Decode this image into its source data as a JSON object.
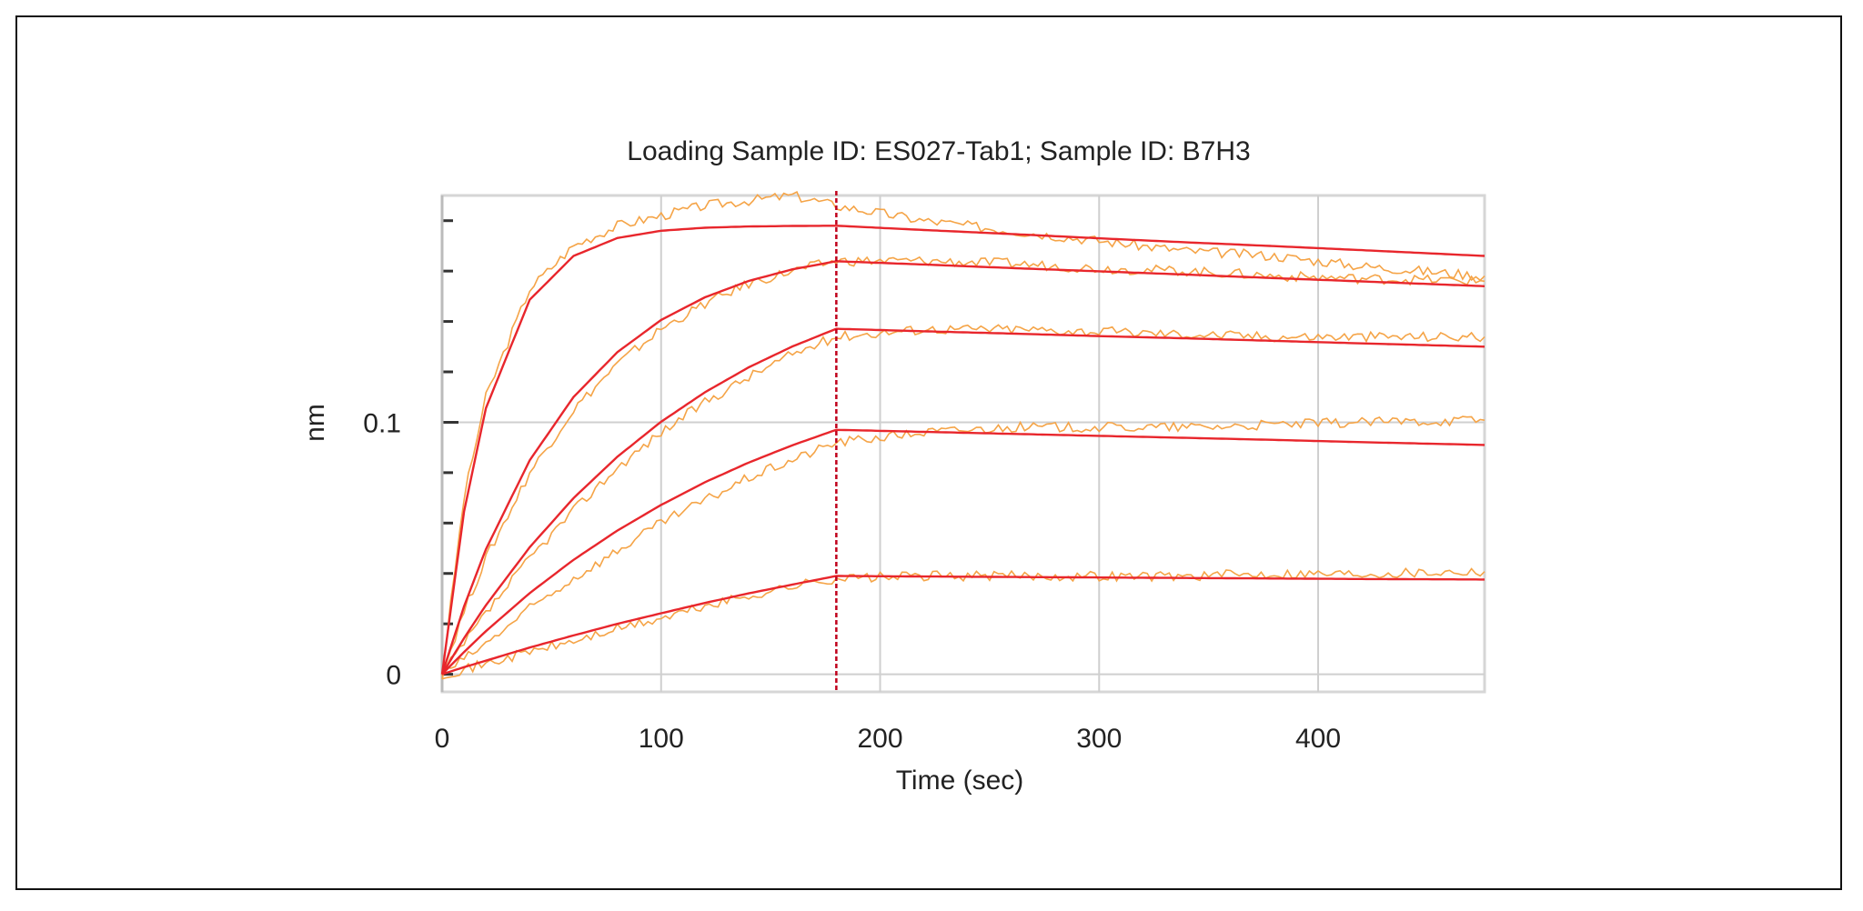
{
  "chart_data": {
    "type": "line",
    "title": "Loading Sample ID: ES027-Tab1; Sample ID: B7H3",
    "xlabel": "Time (sec)",
    "ylabel": "nm",
    "xlim": [
      0,
      476
    ],
    "ylim": [
      -0.007,
      0.19
    ],
    "xticks": [
      0,
      100,
      200,
      300,
      400
    ],
    "xtick_labels": [
      "0",
      "100",
      "200",
      "300",
      "400"
    ],
    "yticks": [
      0,
      0.1
    ],
    "ytick_labels": [
      "0",
      "0.1"
    ],
    "y_minor_tick_step": 0.02,
    "grid": true,
    "dissociation_start": 180,
    "colors": {
      "fit": "#e8262c",
      "raw": "#f5a447",
      "marker_line": "#c0001c",
      "grid": "#cfcfcf"
    },
    "x": [
      0,
      10,
      20,
      40,
      60,
      80,
      100,
      120,
      140,
      160,
      180,
      220,
      260,
      300,
      340,
      380,
      420,
      476
    ],
    "fit_series": [
      {
        "values": [
          0,
          0.0645,
          0.1056,
          0.1486,
          0.166,
          0.1731,
          0.176,
          0.1772,
          0.1777,
          0.1779,
          0.178,
          0.1763,
          0.1747,
          0.173,
          0.1714,
          0.1699,
          0.1683,
          0.166
        ]
      },
      {
        "values": [
          0,
          0.0269,
          0.0496,
          0.0849,
          0.11,
          0.1278,
          0.1406,
          0.1496,
          0.1561,
          0.1607,
          0.1639,
          0.1626,
          0.1612,
          0.1599,
          0.1586,
          0.1572,
          0.1559,
          0.154
        ]
      },
      {
        "values": [
          0,
          0.0143,
          0.0274,
          0.0504,
          0.0699,
          0.0863,
          0.1002,
          0.1119,
          0.1218,
          0.1301,
          0.1371,
          0.1361,
          0.1352,
          0.1342,
          0.1333,
          0.1323,
          0.1313,
          0.13
        ]
      },
      {
        "values": [
          0,
          0.0088,
          0.0171,
          0.0322,
          0.0454,
          0.057,
          0.0672,
          0.0762,
          0.084,
          0.0909,
          0.097,
          0.0962,
          0.0954,
          0.0946,
          0.0938,
          0.093,
          0.0921,
          0.091
        ]
      },
      {
        "values": [
          0,
          0.0028,
          0.0054,
          0.0106,
          0.0154,
          0.02,
          0.0242,
          0.0283,
          0.0321,
          0.0356,
          0.039,
          0.0388,
          0.0386,
          0.0384,
          0.0382,
          0.038,
          0.0378,
          0.0376
        ]
      }
    ],
    "raw_series": [
      {
        "values": [
          0,
          0.07,
          0.11,
          0.153,
          0.17,
          0.178,
          0.182,
          0.186,
          0.188,
          0.19,
          0.186,
          0.18,
          0.176,
          0.172,
          0.168,
          0.166,
          0.162,
          0.158
        ]
      },
      {
        "values": [
          0,
          0.025,
          0.046,
          0.08,
          0.105,
          0.123,
          0.137,
          0.147,
          0.155,
          0.16,
          0.164,
          0.164,
          0.163,
          0.161,
          0.16,
          0.158,
          0.157,
          0.156
        ]
      },
      {
        "values": [
          0,
          0.012,
          0.024,
          0.046,
          0.065,
          0.082,
          0.096,
          0.108,
          0.118,
          0.127,
          0.134,
          0.137,
          0.137,
          0.136,
          0.135,
          0.134,
          0.134,
          0.134
        ]
      },
      {
        "values": [
          0,
          0.006,
          0.012,
          0.026,
          0.038,
          0.049,
          0.06,
          0.069,
          0.078,
          0.085,
          0.092,
          0.096,
          0.098,
          0.098,
          0.098,
          0.099,
          0.1,
          0.101
        ]
      },
      {
        "values": [
          0,
          0.002,
          0.004,
          0.009,
          0.013,
          0.018,
          0.022,
          0.027,
          0.031,
          0.035,
          0.038,
          0.039,
          0.039,
          0.039,
          0.039,
          0.04,
          0.04,
          0.041
        ]
      }
    ]
  }
}
